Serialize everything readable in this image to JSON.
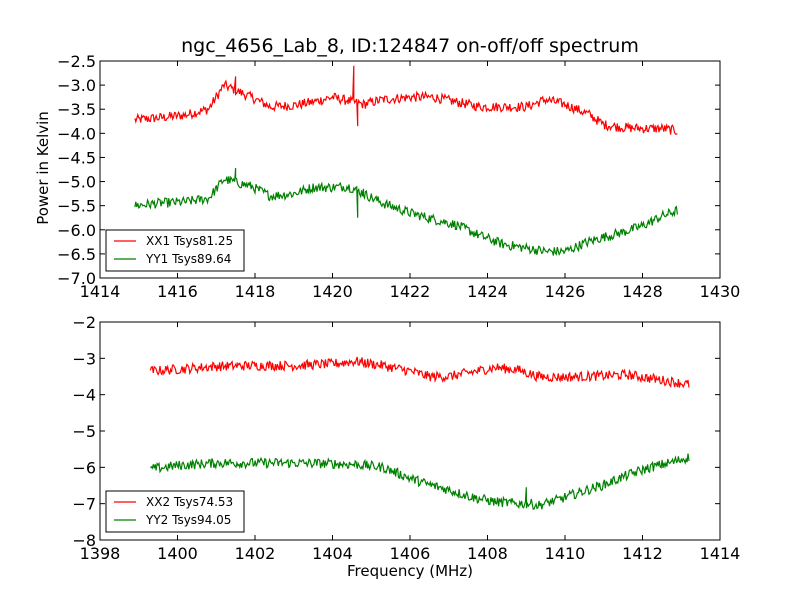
{
  "figure": {
    "title": "ngc_4656_Lab_8, ID:124847 on-off/off spectrum",
    "ylabel": "Power in Kelvin",
    "xlabel": "Frequency (MHz)"
  },
  "chart_data": [
    {
      "type": "line",
      "title": "ngc_4656_Lab_8, ID:124847 on-off/off spectrum",
      "xlabel": "",
      "ylabel": "Power in Kelvin",
      "xlim": [
        1414,
        1430
      ],
      "ylim": [
        -7.0,
        -2.5
      ],
      "xticks": [
        1414,
        1416,
        1418,
        1420,
        1422,
        1424,
        1426,
        1428,
        1430
      ],
      "xtick_labels": [
        "1414",
        "1416",
        "1418",
        "1420",
        "1422",
        "1424",
        "1426",
        "1428",
        "1430"
      ],
      "yticks": [
        -7.0,
        -6.5,
        -6.0,
        -5.5,
        -5.0,
        -4.5,
        -4.0,
        -3.5,
        -3.0,
        -2.5
      ],
      "ytick_labels": [
        "−7.0",
        "−6.5",
        "−6.0",
        "−5.5",
        "−5.0",
        "−4.5",
        "−4.0",
        "−3.5",
        "−3.0",
        "−2.5"
      ],
      "grid": false,
      "legend_position": "lower-left",
      "series": [
        {
          "name": "XX1 Tsys81.25",
          "color": "#ff0000",
          "x": [
            1414.9,
            1415.5,
            1416.2,
            1416.8,
            1417.2,
            1417.5,
            1417.9,
            1418.4,
            1419.0,
            1419.5,
            1420.0,
            1420.4,
            1420.55,
            1420.65,
            1420.8,
            1421.3,
            1422.0,
            1422.6,
            1423.2,
            1423.8,
            1424.4,
            1425.0,
            1425.5,
            1426.0,
            1426.6,
            1427.0,
            1427.5,
            1428.0,
            1428.5,
            1428.9
          ],
          "values": [
            -3.72,
            -3.68,
            -3.62,
            -3.5,
            -3.0,
            -2.82,
            -3.25,
            -3.45,
            -3.42,
            -3.35,
            -3.25,
            -3.3,
            -2.6,
            -3.85,
            -3.4,
            -3.3,
            -3.25,
            -3.25,
            -3.35,
            -3.45,
            -3.45,
            -3.45,
            -3.3,
            -3.4,
            -3.6,
            -3.82,
            -3.88,
            -3.9,
            -3.9,
            -3.95
          ]
        },
        {
          "name": "YY1 Tsys89.64",
          "color": "#008000",
          "x": [
            1414.9,
            1415.5,
            1416.2,
            1416.8,
            1417.2,
            1417.5,
            1417.9,
            1418.4,
            1419.0,
            1419.5,
            1420.0,
            1420.4,
            1420.55,
            1420.65,
            1420.8,
            1421.3,
            1422.0,
            1422.6,
            1423.2,
            1423.8,
            1424.4,
            1425.0,
            1425.5,
            1426.0,
            1426.6,
            1427.0,
            1427.5,
            1428.0,
            1428.5,
            1428.9
          ],
          "values": [
            -5.5,
            -5.45,
            -5.42,
            -5.35,
            -4.95,
            -4.72,
            -5.1,
            -5.3,
            -5.25,
            -5.12,
            -5.12,
            -5.1,
            -5.15,
            -5.75,
            -5.15,
            -5.45,
            -5.65,
            -5.78,
            -5.9,
            -6.12,
            -6.3,
            -6.38,
            -6.45,
            -6.45,
            -6.25,
            -6.15,
            -6.05,
            -5.92,
            -5.72,
            -5.6
          ]
        }
      ]
    },
    {
      "type": "line",
      "title": "",
      "xlabel": "Frequency (MHz)",
      "ylabel": "",
      "xlim": [
        1398,
        1414
      ],
      "ylim": [
        -8,
        -2
      ],
      "xticks": [
        1398,
        1400,
        1402,
        1404,
        1406,
        1408,
        1410,
        1412,
        1414
      ],
      "xtick_labels": [
        "1398",
        "1400",
        "1402",
        "1404",
        "1406",
        "1408",
        "1410",
        "1412",
        "1414"
      ],
      "yticks": [
        -8,
        -7,
        -6,
        -5,
        -4,
        -3,
        -2
      ],
      "ytick_labels": [
        "−8",
        "−7",
        "−6",
        "−5",
        "−4",
        "−3",
        "−2"
      ],
      "grid": false,
      "legend_position": "lower-left",
      "series": [
        {
          "name": "XX2 Tsys74.53",
          "color": "#ff0000",
          "x": [
            1399.3,
            1400.0,
            1401.0,
            1402.0,
            1403.0,
            1404.0,
            1404.6,
            1405.3,
            1406.0,
            1406.5,
            1407.0,
            1407.6,
            1408.2,
            1408.8,
            1409.3,
            1409.8,
            1410.4,
            1411.0,
            1411.6,
            1412.2,
            1412.8,
            1413.2
          ],
          "values": [
            -3.35,
            -3.3,
            -3.22,
            -3.2,
            -3.2,
            -3.15,
            -3.08,
            -3.2,
            -3.35,
            -3.5,
            -3.5,
            -3.38,
            -3.25,
            -3.32,
            -3.5,
            -3.52,
            -3.5,
            -3.48,
            -3.45,
            -3.55,
            -3.65,
            -3.72
          ]
        },
        {
          "name": "YY2 Tsys94.05",
          "color": "#008000",
          "x": [
            1399.3,
            1400.0,
            1401.0,
            1402.0,
            1403.0,
            1404.0,
            1404.6,
            1405.3,
            1406.0,
            1406.5,
            1407.0,
            1407.6,
            1408.2,
            1408.8,
            1409.0,
            1409.1,
            1409.3,
            1409.8,
            1410.4,
            1411.0,
            1411.6,
            1412.2,
            1412.8,
            1413.2
          ],
          "values": [
            -6.05,
            -5.95,
            -5.88,
            -5.88,
            -5.88,
            -5.9,
            -5.92,
            -6.0,
            -6.3,
            -6.48,
            -6.62,
            -6.82,
            -6.95,
            -7.0,
            -6.55,
            -7.0,
            -7.05,
            -6.9,
            -6.68,
            -6.48,
            -6.22,
            -6.0,
            -5.85,
            -5.72
          ]
        }
      ]
    }
  ]
}
